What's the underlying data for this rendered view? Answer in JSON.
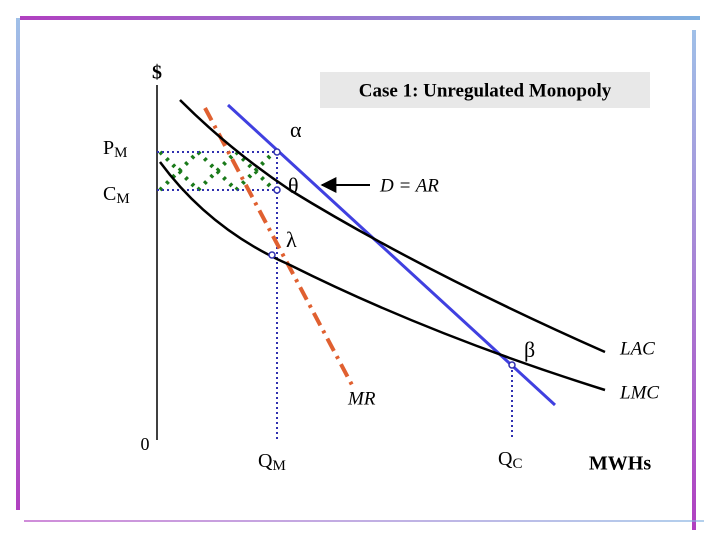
{
  "header": {
    "title": "Case 1: Unregulated Monopoly"
  },
  "axes": {
    "y_label": "$",
    "origin": "0",
    "x_label": "MWHs"
  },
  "prices": {
    "pm": {
      "main": "P",
      "sub": "M"
    },
    "cm": {
      "main": "C",
      "sub": "M"
    }
  },
  "quantities": {
    "qm": {
      "main": "Q",
      "sub": "M"
    },
    "qc": {
      "main": "Q",
      "sub": "C"
    }
  },
  "points": {
    "alpha": "α",
    "theta": "θ",
    "lambda": "λ",
    "beta": "β"
  },
  "curves": {
    "demand": "D = AR",
    "mr": "MR",
    "lac": "LAC",
    "lmc": "LMC"
  }
}
